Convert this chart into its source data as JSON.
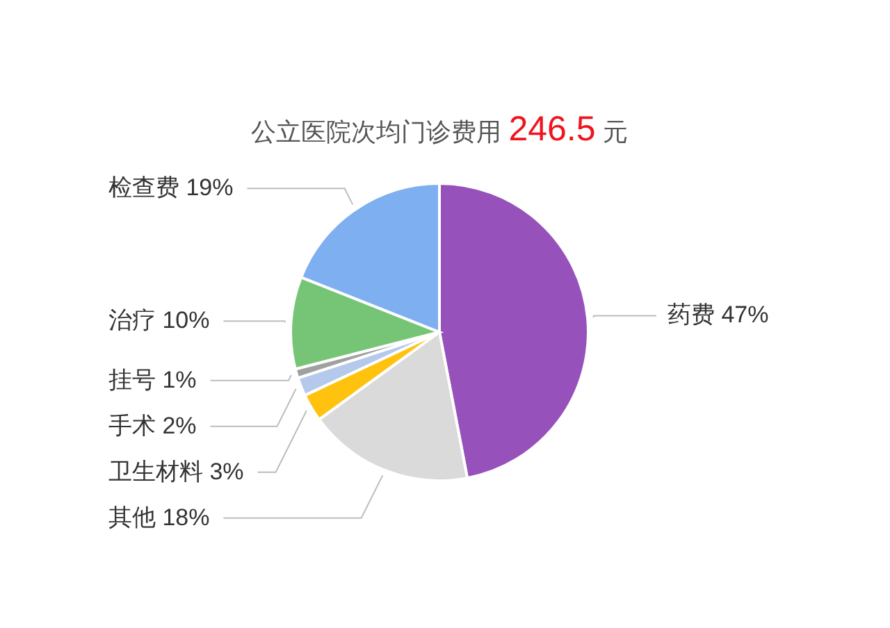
{
  "chart_data": {
    "type": "pie",
    "title": "公立医院次均门诊费用 246.5 元",
    "categories": [
      "药费",
      "其他",
      "卫生材料",
      "手术",
      "挂号",
      "治疗",
      "检查费"
    ],
    "values": [
      47,
      18,
      3,
      2,
      1,
      10,
      19
    ],
    "value_labels": [
      "47%",
      "18%",
      "3%",
      "2%",
      "1%",
      "10%",
      "19%"
    ],
    "colors": [
      "#9751bb",
      "#dadada",
      "#ffc20e",
      "#b4c9ec",
      "#a0a0a0",
      "#76c577",
      "#7eaff0"
    ]
  }
}
